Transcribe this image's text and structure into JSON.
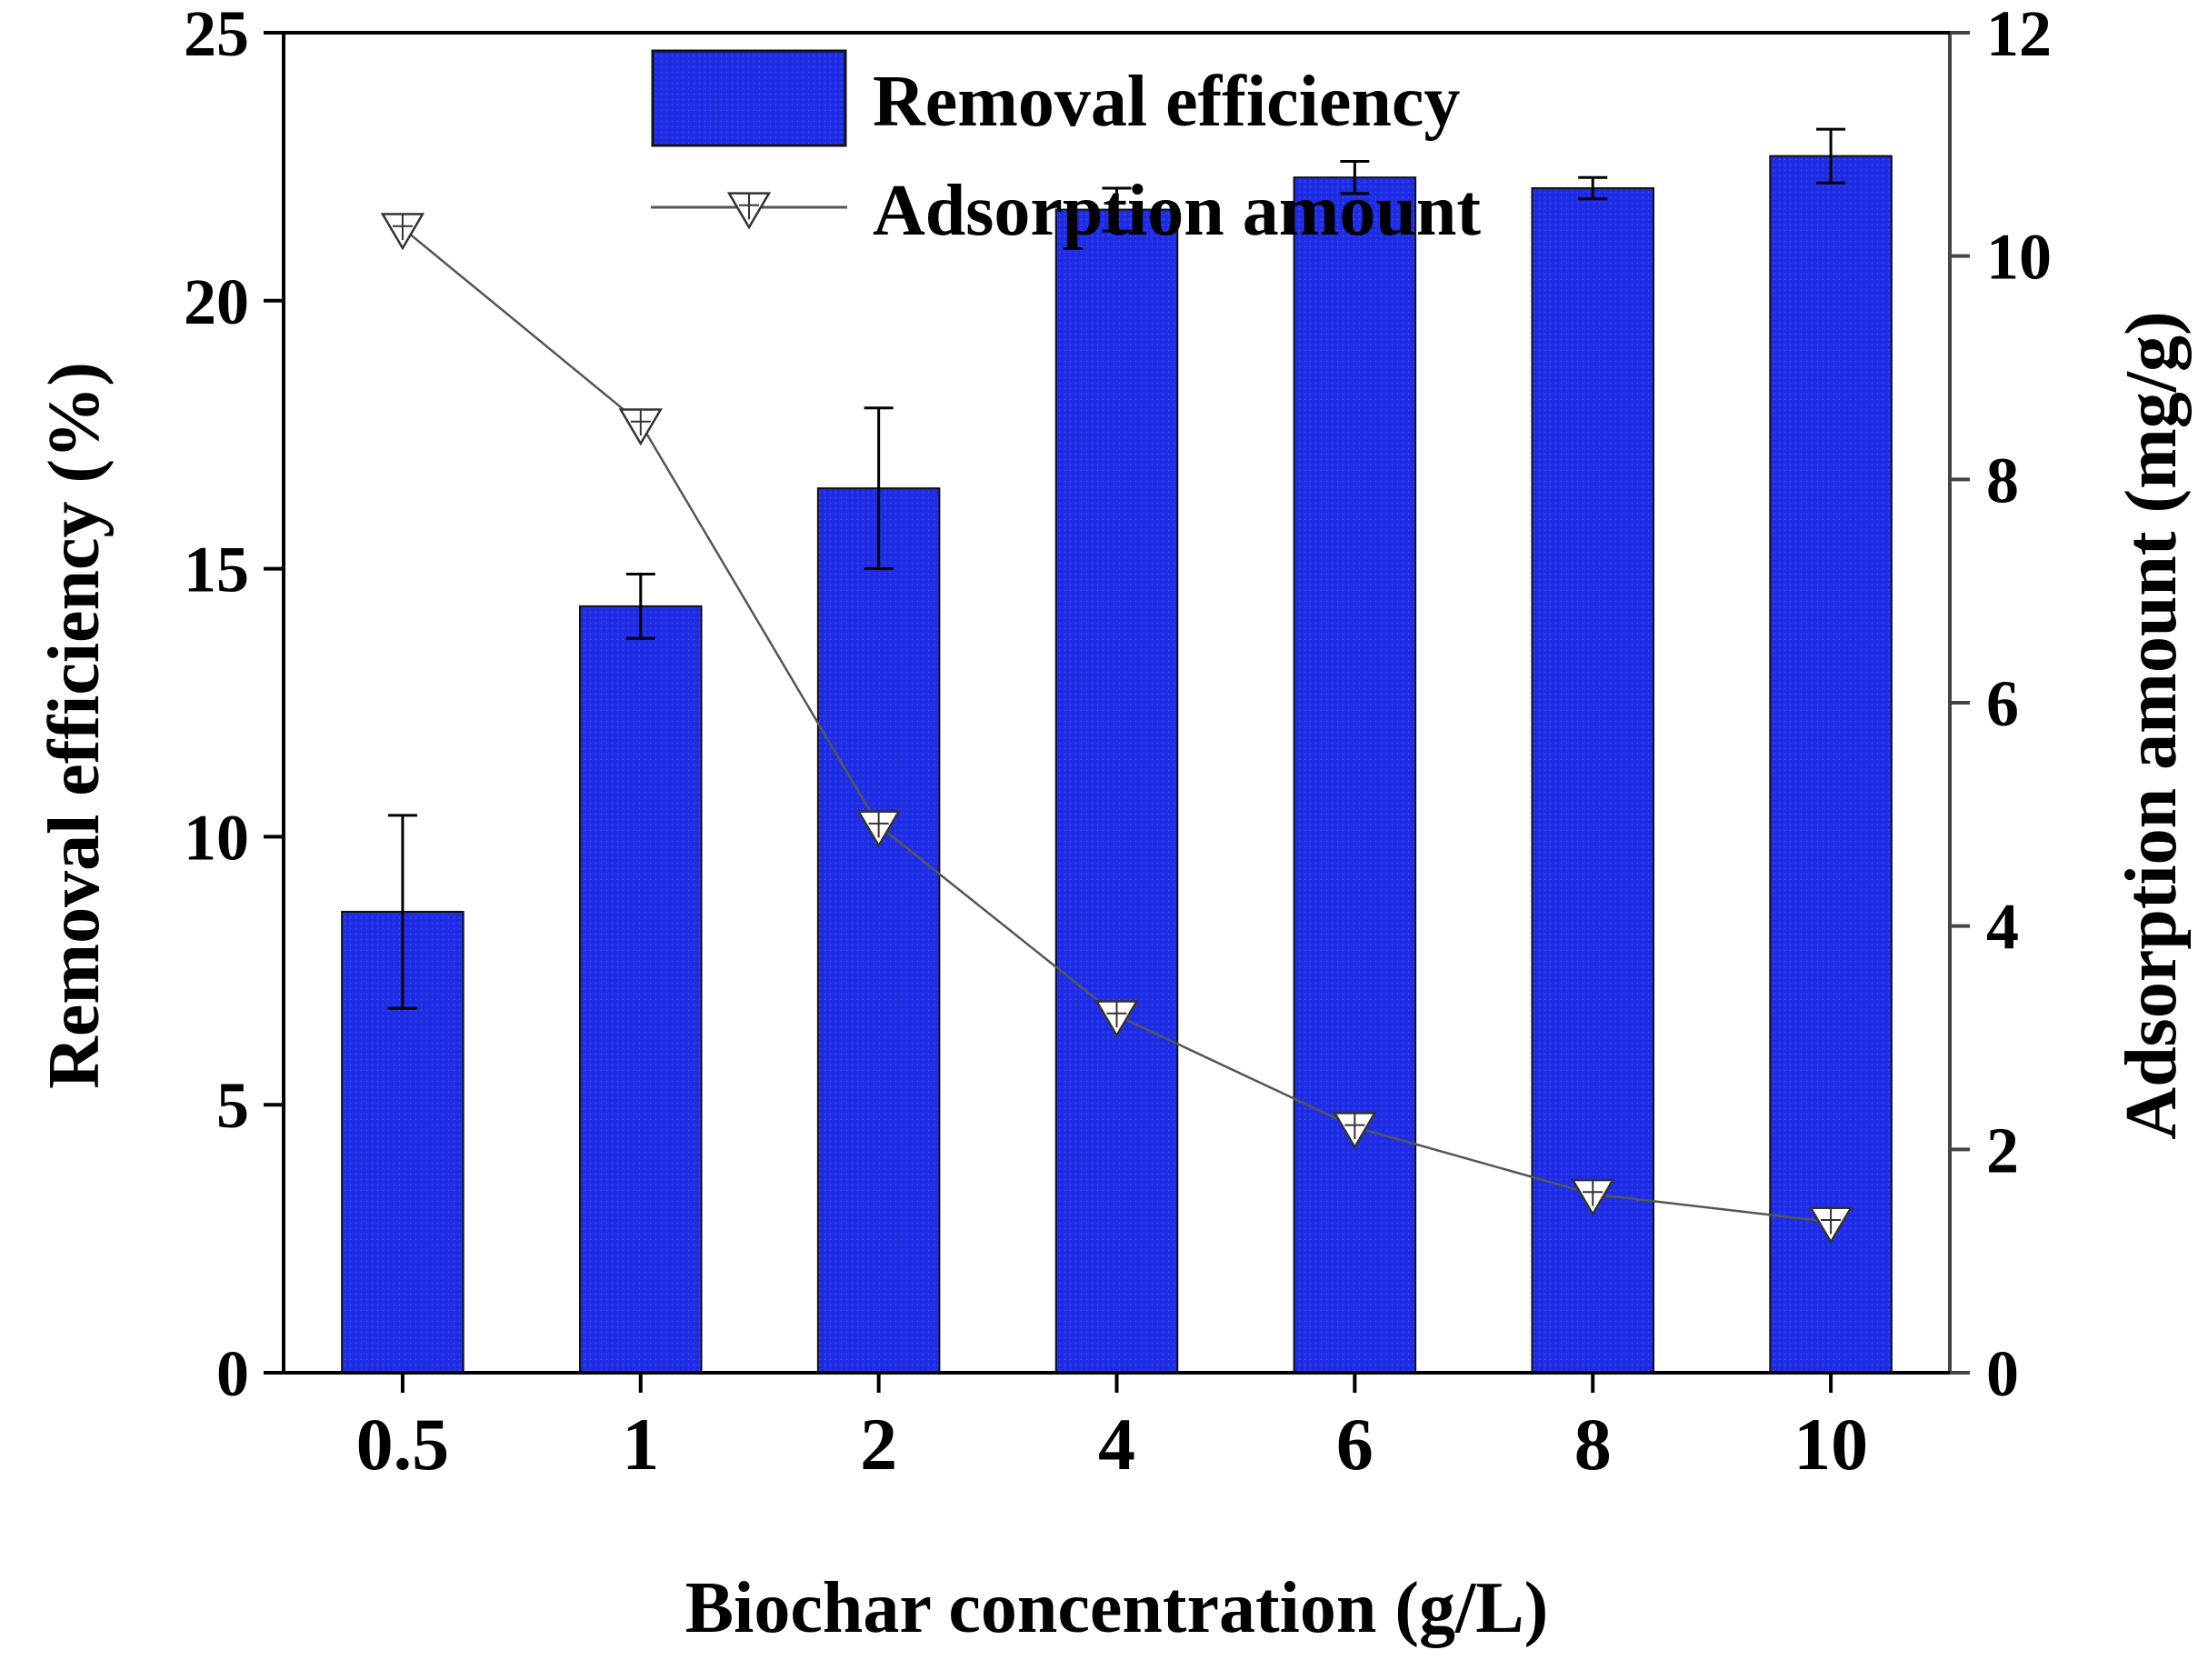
{
  "chart_data": {
    "type": "bar+line",
    "categories": [
      "0.5",
      "1",
      "2",
      "4",
      "6",
      "8",
      "10"
    ],
    "xlabel": "Biochar concentration (g/L)",
    "ylabel_left": "Removal efficiency (%)",
    "ylabel_right": "Adsorption amount (mg/g)",
    "ylim_left": [
      0,
      25
    ],
    "ylim_right": [
      0,
      12
    ],
    "yticks_left": [
      "0",
      "5",
      "10",
      "15",
      "20",
      "25"
    ],
    "yticks_right": [
      "0",
      "2",
      "4",
      "6",
      "8",
      "10",
      "12"
    ],
    "legend_position": "top-center",
    "series": [
      {
        "name": "Removal efficiency",
        "type": "bar",
        "axis": "left",
        "color": "#1f2ee6",
        "values": [
          8.6,
          14.3,
          16.5,
          21.7,
          22.3,
          22.1,
          22.7
        ],
        "errors": [
          1.8,
          0.6,
          1.5,
          0.4,
          0.3,
          0.2,
          0.5
        ]
      },
      {
        "name": "Adsorption amount",
        "type": "line",
        "axis": "right",
        "color": "#555555",
        "marker": "down-triangle",
        "values": [
          10.25,
          8.5,
          4.9,
          3.2,
          2.2,
          1.6,
          1.35
        ]
      }
    ]
  }
}
